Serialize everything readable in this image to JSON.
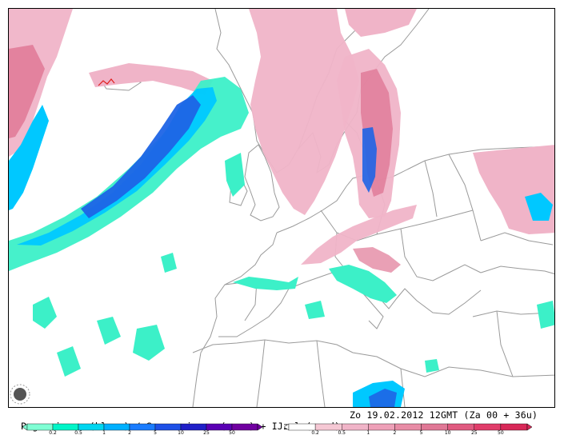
{
  "caption": {
    "left": "Regen in mm (blauw) / Sneeuw in cm (roze) + IJzel (rood)",
    "right": "Zo 19.02.2012 12GMT (Za 00 + 36u)"
  },
  "legend_rain": {
    "ticks": [
      "0.2",
      "0.5",
      "1",
      "2",
      "5",
      "10",
      "25",
      "50"
    ],
    "colors": [
      "#7fffd4",
      "#00f5c8",
      "#00d6f0",
      "#00b0ff",
      "#1a7cff",
      "#1e50e6",
      "#2020c8",
      "#5a00b4",
      "#7000a0"
    ]
  },
  "legend_snow": {
    "ticks": [
      "0.2",
      "0.5",
      "1",
      "2",
      "5",
      "10",
      "25",
      "50"
    ],
    "colors": [
      "#ffffff",
      "#f5c8d4",
      "#f0b4c8",
      "#eea0b8",
      "#e88ca6",
      "#e07896",
      "#e05a80",
      "#e03c6a",
      "#d82858"
    ]
  },
  "colors": {
    "rain_light": "#3cf0c8",
    "rain_mid": "#00c8ff",
    "rain_heavy": "#1e64e6",
    "snow_light": "#f0b4c8",
    "snow_heavy": "#e07896",
    "ice": "#e02020",
    "borders": "#9a9a9a"
  }
}
